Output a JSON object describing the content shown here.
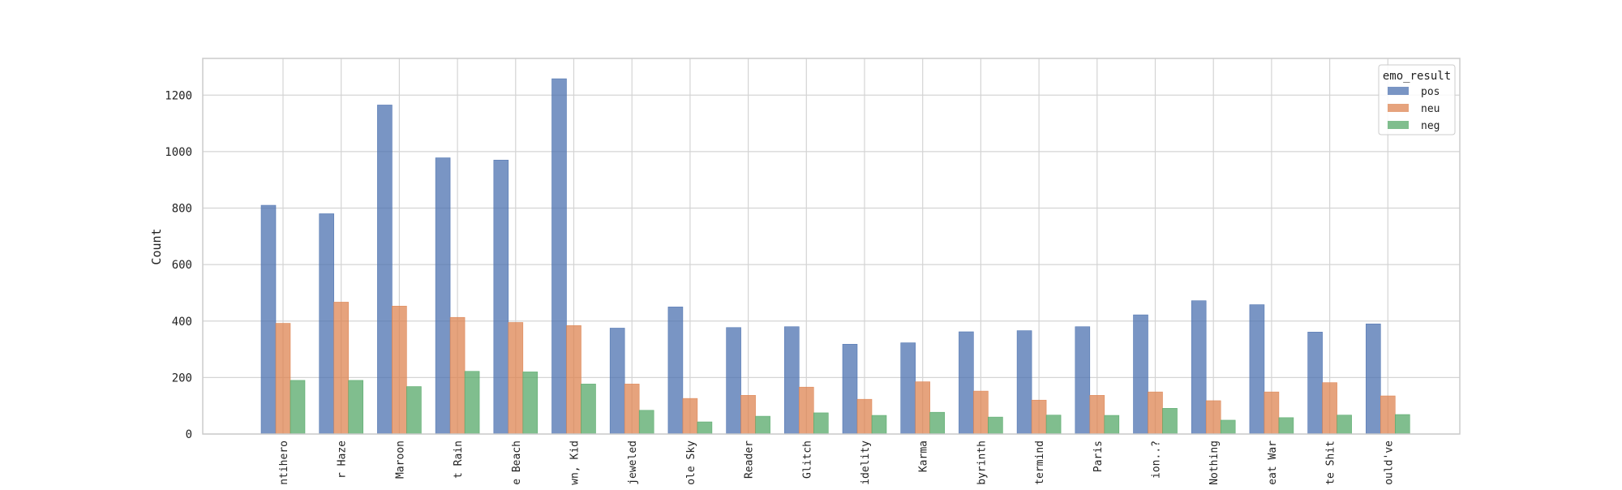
{
  "chart_data": {
    "type": "bar",
    "title": "",
    "xlabel": "",
    "ylabel": "Count",
    "ylim": [
      0,
      1330
    ],
    "yticks": [
      0,
      200,
      400,
      600,
      800,
      1000,
      1200
    ],
    "grid": true,
    "legend_title": "emo_result",
    "legend_placement": "top-right",
    "categories": [
      "ntihero",
      "r Haze",
      "Maroon",
      "t Rain",
      "e Beach",
      "wn, Kid",
      "jeweled",
      "ole Sky",
      "Reader",
      "Glitch",
      "idelity",
      "Karma",
      "byrinth",
      "termind",
      "Paris",
      "ion..?",
      "Nothing",
      "eat War",
      "te Shit",
      "ould've"
    ],
    "series": [
      {
        "name": "pos",
        "color": "#4c72b0",
        "values": [
          810,
          780,
          1165,
          978,
          970,
          1258,
          375,
          450,
          377,
          380,
          318,
          323,
          362,
          366,
          380,
          422,
          472,
          458,
          361,
          390
        ]
      },
      {
        "name": "neu",
        "color": "#dd8452",
        "values": [
          392,
          467,
          453,
          413,
          395,
          384,
          177,
          126,
          137,
          166,
          123,
          185,
          152,
          120,
          137,
          149,
          118,
          149,
          182,
          135
        ]
      },
      {
        "name": "neg",
        "color": "#55a868",
        "values": [
          190,
          190,
          168,
          222,
          220,
          177,
          84,
          43,
          63,
          75,
          66,
          77,
          60,
          67,
          66,
          91,
          49,
          58,
          67,
          69
        ]
      }
    ]
  }
}
